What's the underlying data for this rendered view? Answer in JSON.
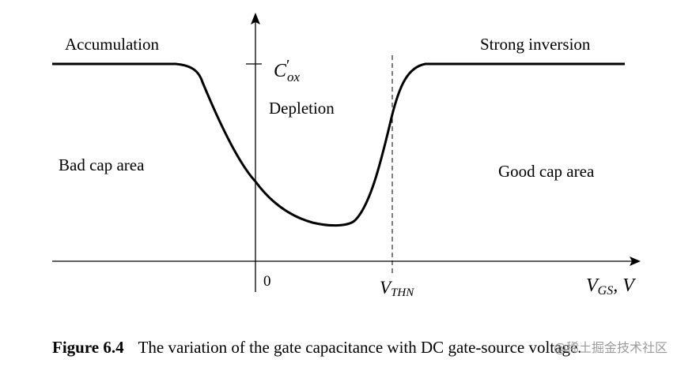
{
  "regions": {
    "accumulation": "Accumulation",
    "strong_inversion": "Strong inversion",
    "depletion": "Depletion",
    "bad_cap": "Bad cap area",
    "good_cap": "Good cap area"
  },
  "axis": {
    "origin_label": "0",
    "vthn_main": "V",
    "vthn_sub": "THN",
    "x_main": "V",
    "x_sub": "GS",
    "x_unit": ", V",
    "y_tick_main": "C",
    "y_tick_prime": "′",
    "y_tick_sub": "ox"
  },
  "caption": {
    "number": "Figure 6.4",
    "text": "The variation of the gate capacitance with DC gate-source voltage."
  },
  "watermark": "@稀土掘金技术社区"
}
